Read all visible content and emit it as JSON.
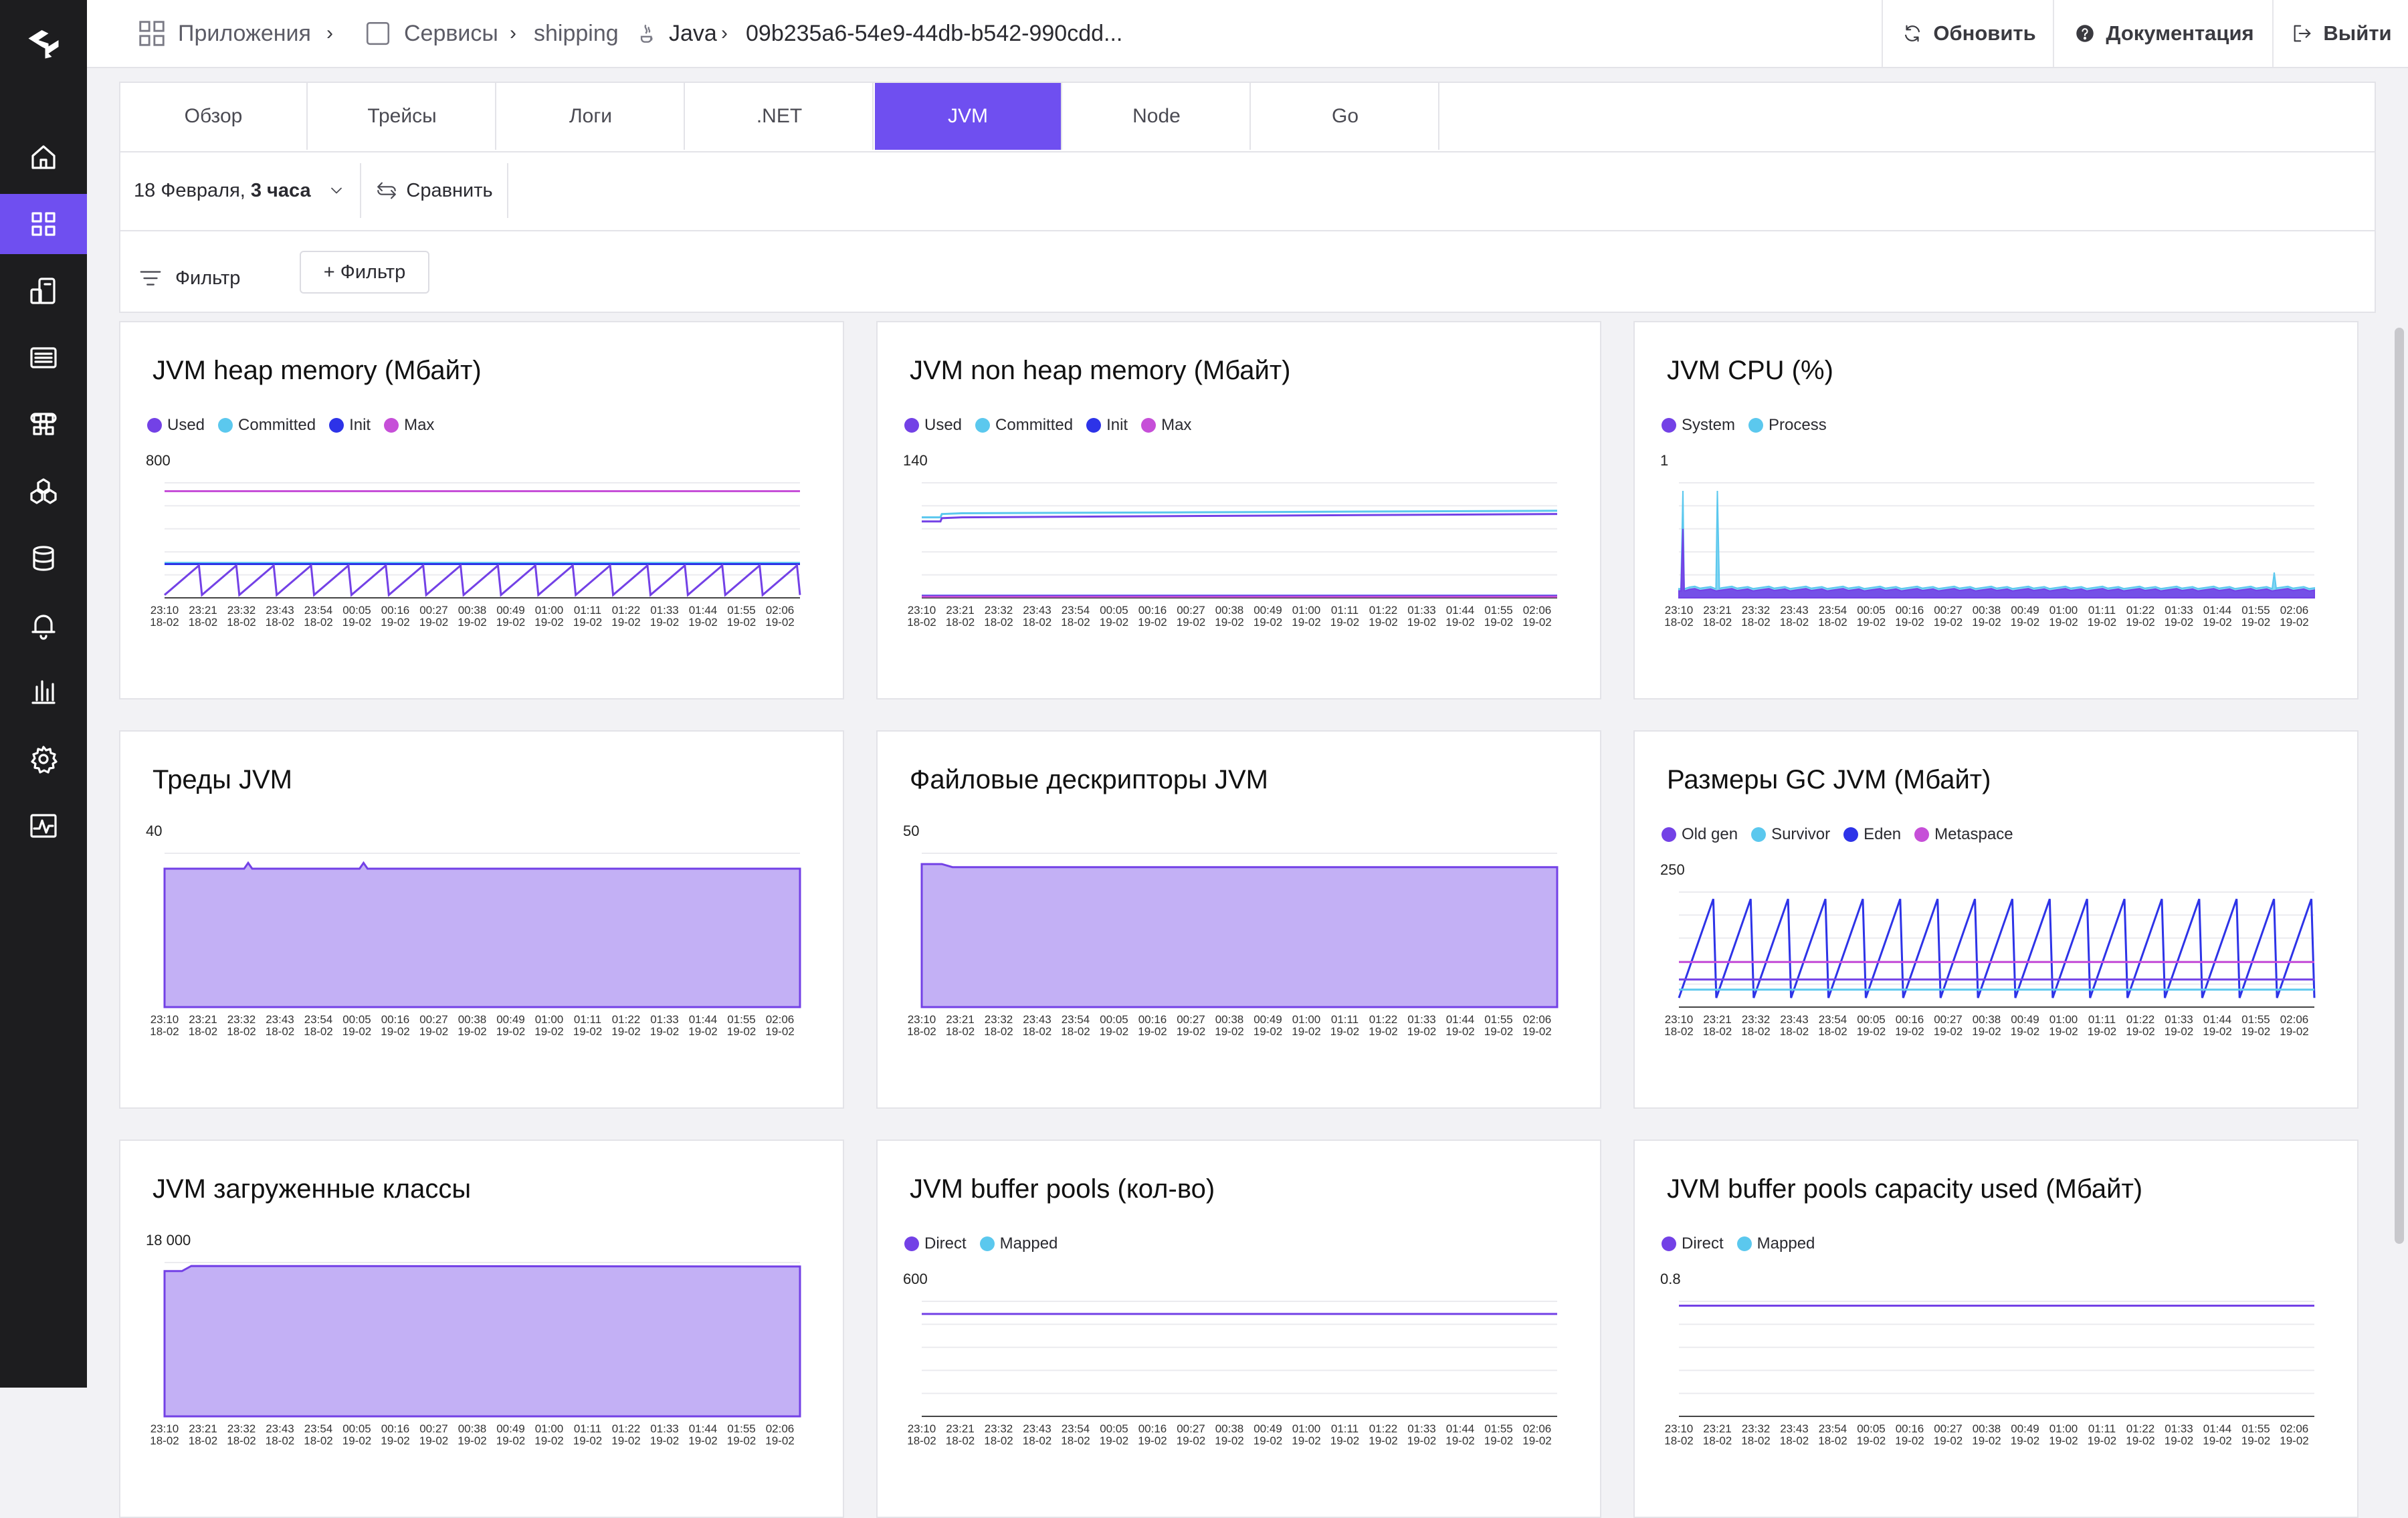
{
  "colors": {
    "accent": "#6f4ff0",
    "used": "#7341e6",
    "committed": "#5bc8ee",
    "init": "#2d33e8",
    "max": "#c64fd8",
    "fill": "#c3b0f5"
  },
  "sidebar": {
    "icons": [
      "logo-icon",
      "home-icon",
      "apps-icon",
      "services-icon",
      "list-icon",
      "modules-icon",
      "hexagons-icon",
      "database-icon",
      "bell-icon",
      "bar-chart-icon",
      "gear-icon",
      "activity-icon"
    ]
  },
  "header": {
    "apps": "Приложения",
    "services": "Сервисы",
    "service": "shipping",
    "lang": "Java",
    "instance": "09b235a6-54e9-44db-b542-990cdd...",
    "refresh": "Обновить",
    "docs": "Документация",
    "logout": "Выйти"
  },
  "tabs": [
    "Обзор",
    "Трейсы",
    "Логи",
    ".NET",
    "JVM",
    "Node",
    "Go"
  ],
  "active_tab": "JVM",
  "toolbar": {
    "date": "18 Февраля,",
    "range": "3 часа",
    "compare": "Сравнить",
    "filter": "Фильтр",
    "add_filter": "+ Фильтр"
  },
  "time_ticks": [
    "23:10",
    "23:21",
    "23:32",
    "23:43",
    "23:54",
    "00:05",
    "00:16",
    "00:27",
    "00:38",
    "00:49",
    "01:00",
    "01:11",
    "01:22",
    "01:33",
    "01:44",
    "01:55",
    "02:06"
  ],
  "time_dates": [
    "18-02",
    "18-02",
    "18-02",
    "18-02",
    "18-02",
    "19-02",
    "19-02",
    "19-02",
    "19-02",
    "19-02",
    "19-02",
    "19-02",
    "19-02",
    "19-02",
    "19-02",
    "19-02",
    "19-02"
  ],
  "cards": [
    {
      "title": "JVM heap memory (Мбайт)",
      "legend": [
        "Used",
        "Committed",
        "Init",
        "Max"
      ],
      "ymax_label": "800"
    },
    {
      "title": "JVM non heap memory (Мбайт)",
      "legend": [
        "Used",
        "Committed",
        "Init",
        "Max"
      ],
      "ymax_label": "140"
    },
    {
      "title": "JVM CPU (%)",
      "legend": [
        "System",
        "Process"
      ],
      "ymax_label": "1"
    },
    {
      "title": "Треды JVM",
      "legend": [],
      "ymax_label": "40"
    },
    {
      "title": "Файловые дескрипторы JVM",
      "legend": [],
      "ymax_label": "50"
    },
    {
      "title": "Размеры GC JVM (Мбайт)",
      "legend": [
        "Old gen",
        "Survivor",
        "Eden",
        "Metaspace"
      ],
      "ymax_label": "250"
    },
    {
      "title": "JVM загруженные классы",
      "legend": [],
      "ymax_label": "18 000"
    },
    {
      "title": "JVM buffer pools (кол-во)",
      "legend": [
        "Direct",
        "Mapped"
      ],
      "ymax_label": "600"
    },
    {
      "title": "JVM buffer pools capacity used (Мбайт)",
      "legend": [
        "Direct",
        "Mapped"
      ],
      "ymax_label": "0.8"
    }
  ],
  "chart_data": [
    {
      "type": "line",
      "title": "JVM heap memory (Мбайт)",
      "ylim": [
        0,
        800
      ],
      "series": [
        {
          "name": "Max",
          "values": [
            742
          ]
        },
        {
          "name": "Committed",
          "values": [
            243
          ]
        },
        {
          "name": "Init",
          "values": [
            235
          ]
        },
        {
          "name": "Used",
          "values_pattern": "sawtooth",
          "min": 20,
          "max": 225,
          "cycles": 17
        }
      ]
    },
    {
      "type": "line",
      "title": "JVM non heap memory (Мбайт)",
      "ylim": [
        0,
        140
      ],
      "series": [
        {
          "name": "Committed",
          "start": 98,
          "end": 106
        },
        {
          "name": "Used",
          "start": 93,
          "end": 102
        },
        {
          "name": "Init",
          "values": [
            2.5
          ]
        },
        {
          "name": "Max",
          "values": [
            1.5
          ]
        }
      ]
    },
    {
      "type": "area",
      "title": "JVM CPU (%)",
      "ylim": [
        0,
        1
      ],
      "series": [
        {
          "name": "Process",
          "baseline": 0.08,
          "spikes_at": [
            "23:12",
            "23:21",
            "01:52"
          ],
          "spike_values": [
            0.93,
            0.93,
            0.22
          ]
        },
        {
          "name": "System",
          "baseline": 0.06,
          "spikes_at": [
            "23:12"
          ],
          "spike_values": [
            0.6
          ]
        }
      ]
    },
    {
      "type": "area",
      "title": "Треды JVM",
      "ylim": [
        0,
        40
      ],
      "series": [
        {
          "values_constant": 36,
          "spikes_at": [
            "23:32",
            "00:05"
          ],
          "spike_values": [
            37.5,
            37.5
          ]
        }
      ]
    },
    {
      "type": "area",
      "title": "Файловые дескрипторы JVM",
      "ylim": [
        0,
        50
      ],
      "series": [
        {
          "values_constant": 45.5,
          "start": 46.5
        }
      ]
    },
    {
      "type": "line",
      "title": "Размеры GC JVM (Мбайт)",
      "ylim": [
        0,
        250
      ],
      "series": [
        {
          "name": "Eden",
          "values_pattern": "sawtooth",
          "min": 20,
          "max": 235,
          "cycles": 17
        },
        {
          "name": "Metaspace",
          "values": [
            98
          ]
        },
        {
          "name": "Old gen",
          "values": [
            60
          ]
        },
        {
          "name": "Survivor",
          "values": [
            38
          ]
        }
      ]
    },
    {
      "type": "area",
      "title": "JVM загруженные классы",
      "ylim": [
        0,
        18000
      ],
      "series": [
        {
          "start": 17000,
          "values_constant": 17600
        }
      ]
    },
    {
      "type": "line",
      "title": "JVM buffer pools (кол-во)",
      "ylim": [
        0,
        600
      ],
      "series": [
        {
          "name": "Direct",
          "values": [
            534
          ]
        }
      ]
    },
    {
      "type": "line",
      "title": "JVM buffer pools capacity used (Мбайт)",
      "ylim": [
        0,
        0.8
      ],
      "series": [
        {
          "name": "Direct",
          "values": [
            0.77
          ]
        }
      ]
    }
  ]
}
